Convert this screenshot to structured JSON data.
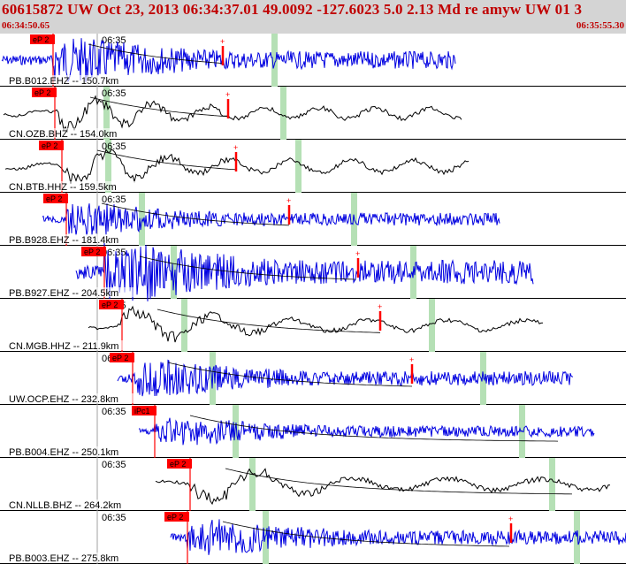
{
  "header": {
    "title": "60615872 UW Oct 23, 2013 06:34:37.01    49.0092 -127.6023  5.0 2.13 Md re amyw UW 01   3",
    "start_time": "06:34:50.65",
    "end_time": "06:35:55.30",
    "minute_mark": "06:35"
  },
  "colors": {
    "header_bg": "#d4d4d4",
    "header_text": "#c00000",
    "trace_ehz": "#0000e0",
    "trace_bhz": "#000000",
    "phase_line": "#ff0000",
    "pick_box": "#ff0000",
    "window_band": "#b5e0b5",
    "grid": "#a0a0a0",
    "envelope": "#000000"
  },
  "traces": [
    {
      "label": "PB.B012.EHZ -- 150.7km",
      "pick": "eP 2",
      "color": "blue"
    },
    {
      "label": "CN.OZB.BHZ -- 154.0km",
      "pick": "eP 2",
      "color": "black"
    },
    {
      "label": "CN.BTB.HHZ -- 159.5km",
      "pick": "eP 2",
      "color": "black"
    },
    {
      "label": "PB.B928.EHZ -- 181.4km",
      "pick": "eP 2",
      "color": "blue"
    },
    {
      "label": "PB.B927.EHZ -- 204.5km",
      "pick": "eP 2",
      "color": "blue"
    },
    {
      "label": "CN.MGB.HHZ -- 211.9km",
      "pick": "eP 2",
      "color": "black"
    },
    {
      "label": "UW.OCP.EHZ -- 232.8km",
      "pick": "eP 2",
      "color": "blue"
    },
    {
      "label": "PB.B004.EHZ -- 250.1km",
      "pick": "iPc1",
      "color": "blue"
    },
    {
      "label": "CN.NLLB.BHZ -- 264.2km",
      "pick": "eP 2",
      "color": "black"
    },
    {
      "label": "PB.B003.EHZ -- 275.8km",
      "pick": "eP 2",
      "color": "blue"
    }
  ]
}
